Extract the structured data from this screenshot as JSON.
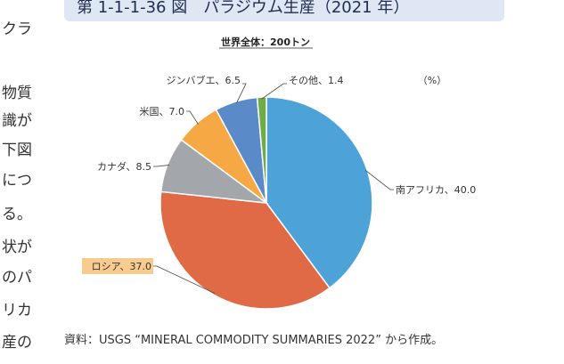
{
  "side_text": [
    "クラ",
    "物質",
    "識が",
    "下図",
    "につ",
    "る。",
    "状が",
    "のパ",
    "リカ",
    "産の"
  ],
  "figure": {
    "title": "第 1-1-1-36 図　パラジウム生産（2021 年）",
    "source": "資料：USGS “MINERAL COMMODITY SUMMARIES 2022” から作成。"
  },
  "chart_data": {
    "type": "pie",
    "title": "世界全体：200トン",
    "unit": "（%）",
    "slices": [
      {
        "label": "南アフリカ、40.0",
        "value": 40.0,
        "color": "#4da3d8"
      },
      {
        "label": "ロシア、37.0",
        "value": 37.0,
        "color": "#e06a45"
      },
      {
        "label": "カナダ、8.5",
        "value": 8.5,
        "color": "#a3a6ab"
      },
      {
        "label": "米国、7.0",
        "value": 7.0,
        "color": "#f5a844"
      },
      {
        "label": "ジンバブエ、6.5",
        "value": 6.5,
        "color": "#5b8ac9"
      },
      {
        "label": "その他、1.4",
        "value": 1.4,
        "color": "#70ab47"
      }
    ],
    "highlight_color": "#f8cc90"
  }
}
